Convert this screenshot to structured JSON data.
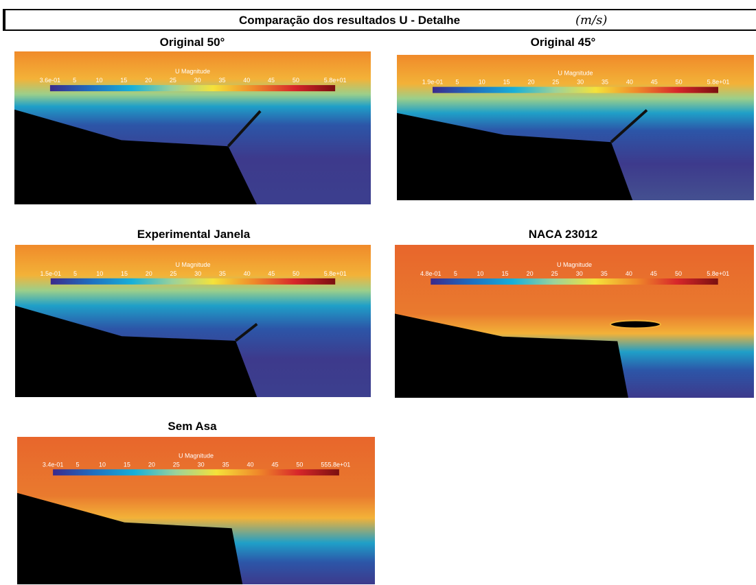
{
  "header": {
    "title": "Comparação dos resultados U - Detalhe",
    "unit": "(m/s)"
  },
  "panels": [
    {
      "title": "Original 50°",
      "colorbar": {
        "label": "U Magnitude",
        "ticks": [
          "3.6e-01",
          "5",
          "10",
          "15",
          "20",
          "25",
          "30",
          "35",
          "40",
          "45",
          "50",
          "5.8e+01"
        ]
      }
    },
    {
      "title": "Original 45°",
      "colorbar": {
        "label": "U Magnitude",
        "ticks": [
          "1.9e-01",
          "5",
          "10",
          "15",
          "20",
          "25",
          "30",
          "35",
          "40",
          "45",
          "50",
          "5.8e+01"
        ]
      }
    },
    {
      "title": "Experimental Janela",
      "colorbar": {
        "label": "U Magnitude",
        "ticks": [
          "1.5e-01",
          "5",
          "10",
          "15",
          "20",
          "25",
          "30",
          "35",
          "40",
          "45",
          "50",
          "5.8e+01"
        ]
      }
    },
    {
      "title": "NACA 23012",
      "colorbar": {
        "label": "U Magnitude",
        "ticks": [
          "4.8e-01",
          "5",
          "10",
          "15",
          "20",
          "25",
          "30",
          "35",
          "40",
          "45",
          "50",
          "5.8e+01"
        ]
      }
    },
    {
      "title": "Sem Asa",
      "colorbar": {
        "label": "U Magnitude",
        "ticks": [
          "3.4e-01",
          "5",
          "10",
          "15",
          "20",
          "25",
          "30",
          "35",
          "40",
          "45",
          "50",
          "55",
          "5.8e+01"
        ]
      }
    }
  ]
}
